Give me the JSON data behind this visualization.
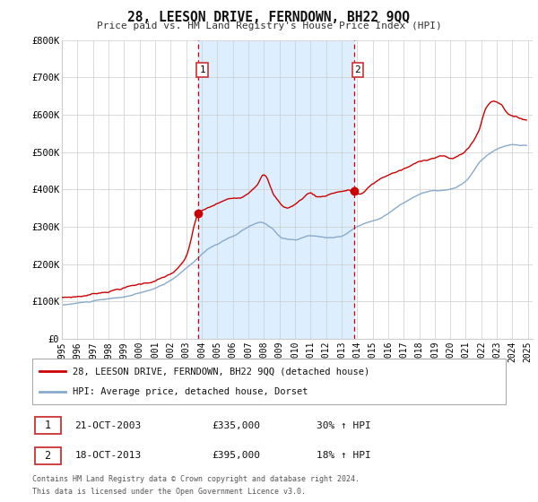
{
  "title": "28, LEESON DRIVE, FERNDOWN, BH22 9QQ",
  "subtitle": "Price paid vs. HM Land Registry's House Price Index (HPI)",
  "legend_line1": "28, LEESON DRIVE, FERNDOWN, BH22 9QQ (detached house)",
  "legend_line2": "HPI: Average price, detached house, Dorset",
  "annotation1_label": "1",
  "annotation1_date": "21-OCT-2003",
  "annotation1_price": "£335,000",
  "annotation1_hpi": "30% ↑ HPI",
  "annotation2_label": "2",
  "annotation2_date": "18-OCT-2013",
  "annotation2_price": "£395,000",
  "annotation2_hpi": "18% ↑ HPI",
  "footnote_line1": "Contains HM Land Registry data © Crown copyright and database right 2024.",
  "footnote_line2": "This data is licensed under the Open Government Licence v3.0.",
  "red_color": "#cc0000",
  "blue_color": "#88aacc",
  "shading_color": "#ddeeff",
  "grid_color": "#cccccc",
  "marker1_x": 2003.79,
  "marker1_y": 335000,
  "marker2_x": 2013.79,
  "marker2_y": 395000,
  "vline1_x": 2003.79,
  "vline2_x": 2013.79,
  "ylim": [
    0,
    800000
  ],
  "xlim": [
    1995.0,
    2025.3
  ],
  "yticks": [
    0,
    100000,
    200000,
    300000,
    400000,
    500000,
    600000,
    700000,
    800000
  ],
  "ytick_labels": [
    "£0",
    "£100K",
    "£200K",
    "£300K",
    "£400K",
    "£500K",
    "£600K",
    "£700K",
    "£800K"
  ],
  "xticks": [
    1995,
    1996,
    1997,
    1998,
    1999,
    2000,
    2001,
    2002,
    2003,
    2004,
    2005,
    2006,
    2007,
    2008,
    2009,
    2010,
    2011,
    2012,
    2013,
    2014,
    2015,
    2016,
    2017,
    2018,
    2019,
    2020,
    2021,
    2022,
    2023,
    2024,
    2025
  ]
}
